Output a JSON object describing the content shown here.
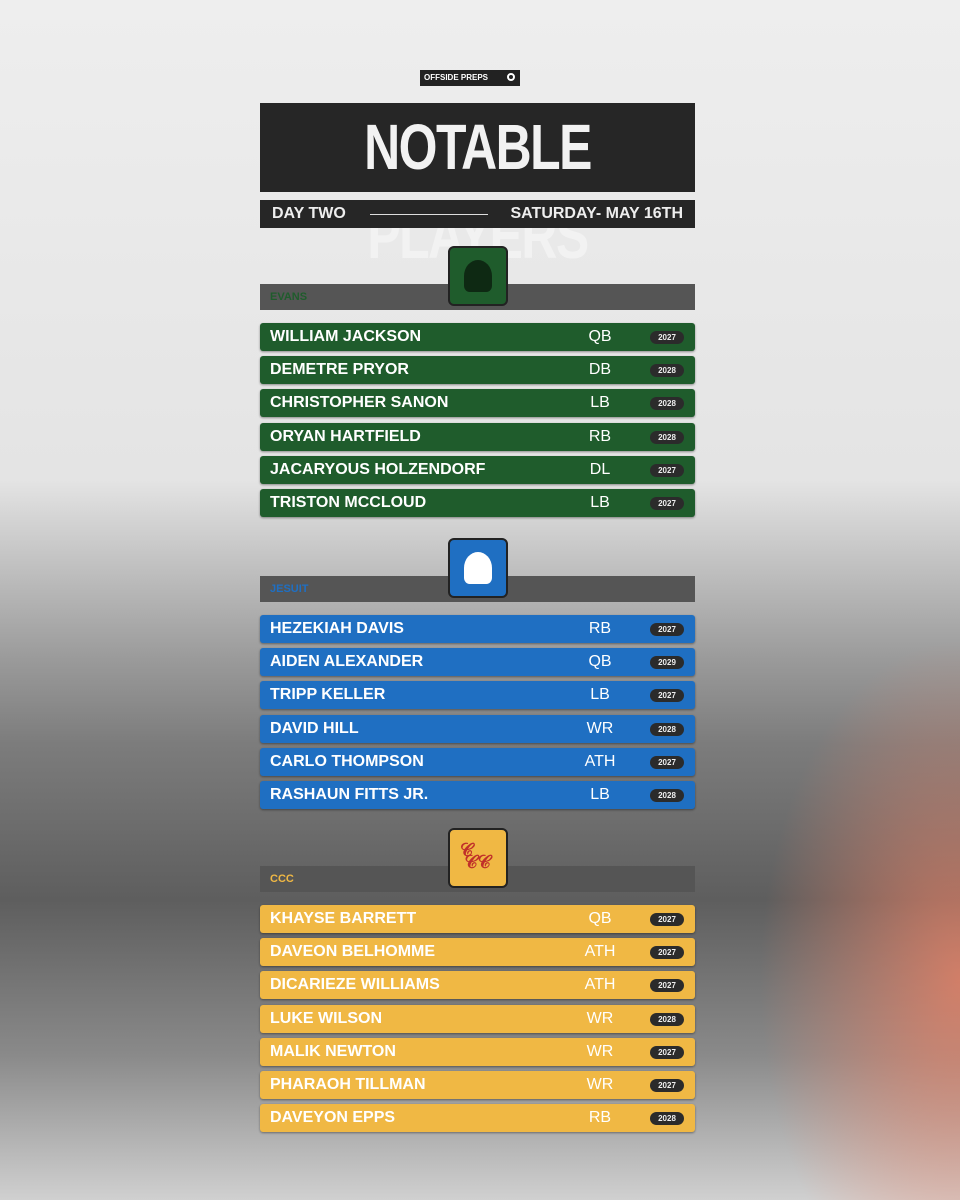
{
  "header": {
    "brand": "OFFSIDE PREPS",
    "title": "NOTABLE PLAYERS",
    "day": "DAY TWO",
    "date": "SATURDAY- MAY 16TH"
  },
  "teams": [
    {
      "name": "EVANS",
      "players": [
        {
          "name": "WILLIAM JACKSON",
          "position": "QB",
          "year": "2027"
        },
        {
          "name": "DEMETRE PRYOR",
          "position": "DB",
          "year": "2028"
        },
        {
          "name": "CHRISTOPHER SANON",
          "position": "LB",
          "year": "2028"
        },
        {
          "name": "ORYAN HARTFIELD",
          "position": "RB",
          "year": "2028"
        },
        {
          "name": "JACARYOUS HOLZENDORF",
          "position": "DL",
          "year": "2027"
        },
        {
          "name": "TRISTON MCCLOUD",
          "position": "LB",
          "year": "2027"
        }
      ]
    },
    {
      "name": "JESUIT",
      "players": [
        {
          "name": "HEZEKIAH DAVIS",
          "position": "RB",
          "year": "2027"
        },
        {
          "name": "AIDEN ALEXANDER",
          "position": "QB",
          "year": "2029"
        },
        {
          "name": "TRIPP KELLER",
          "position": "LB",
          "year": "2027"
        },
        {
          "name": "DAVID HILL",
          "position": "WR",
          "year": "2028"
        },
        {
          "name": "CARLO THOMPSON",
          "position": "ATH",
          "year": "2027"
        },
        {
          "name": "RASHAUN FITTS JR.",
          "position": "LB",
          "year": "2028"
        }
      ]
    },
    {
      "name": "CCC",
      "players": [
        {
          "name": "KHAYSE BARRETT",
          "position": "QB",
          "year": "2027"
        },
        {
          "name": "DAVEON BELHOMME",
          "position": "ATH",
          "year": "2027"
        },
        {
          "name": "DICARIEZE WILLIAMS",
          "position": "ATH",
          "year": "2027"
        },
        {
          "name": "LUKE WILSON",
          "position": "WR",
          "year": "2028"
        },
        {
          "name": "MALIK NEWTON",
          "position": "WR",
          "year": "2027"
        },
        {
          "name": "PHARAOH TILLMAN",
          "position": "WR",
          "year": "2027"
        },
        {
          "name": "DAVEYON EPPS",
          "position": "RB",
          "year": "2028"
        }
      ]
    }
  ]
}
